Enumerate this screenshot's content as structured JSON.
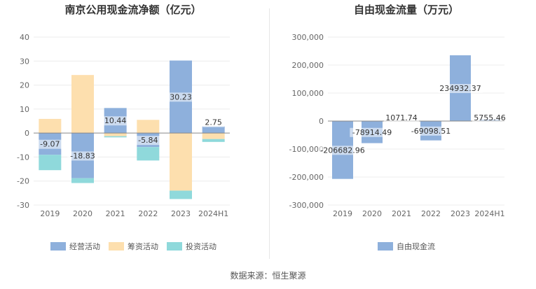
{
  "charts": [
    {
      "id": "left",
      "title": "南京公用现金流净额（亿元）",
      "type": "bar",
      "stacked": true,
      "categories": [
        "2019",
        "2020",
        "2021",
        "2022",
        "2023",
        "2024H1"
      ],
      "ylim": [
        -30,
        40
      ],
      "yticks": [
        40,
        30,
        20,
        10,
        0,
        -10,
        -20,
        -30
      ],
      "ytick_labels": [
        "40",
        "30",
        "20",
        "10",
        "0",
        "-10",
        "-20",
        "-30"
      ],
      "series": [
        {
          "name": "经营活动",
          "color": "#8eb0dc",
          "values": [
            -9.07,
            -18.83,
            10.44,
            -5.84,
            30.23,
            2.75
          ]
        },
        {
          "name": "筹资活动",
          "color": "#fddfae",
          "values": [
            5.9,
            24.2,
            -1.3,
            5.5,
            -24.0,
            -2.5
          ]
        },
        {
          "name": "投资活动",
          "color": "#8fd9db",
          "values": [
            -6.4,
            -2.0,
            -0.5,
            -5.6,
            -3.5,
            -1.2
          ]
        }
      ],
      "data_labels": [
        "-9.07",
        "-18.83",
        "10.44",
        "-5.84",
        "30.23",
        "2.75"
      ]
    },
    {
      "id": "right",
      "title": "自由现金流量（万元）",
      "type": "bar",
      "categories": [
        "2019",
        "2020",
        "2021",
        "2022",
        "2023",
        "2024H1"
      ],
      "ylim": [
        -300000,
        300000
      ],
      "yticks": [
        300000,
        200000,
        100000,
        0,
        -100000,
        -200000,
        -300000
      ],
      "ytick_labels": [
        "300,000",
        "200,000",
        "100,000",
        "0",
        "-100,000",
        "-200,000",
        "-300,000"
      ],
      "series": [
        {
          "name": "自由现金流",
          "color": "#8eb0dc",
          "values": [
            -206682.96,
            -78914.49,
            1071.74,
            -69098.51,
            234932.37,
            5755.46
          ]
        }
      ],
      "data_labels": [
        "-206682.96",
        "-78914.49",
        "1071.74",
        "-69098.51",
        "234932.37",
        "5755.46"
      ]
    }
  ],
  "source": "数据来源：恒生聚源"
}
